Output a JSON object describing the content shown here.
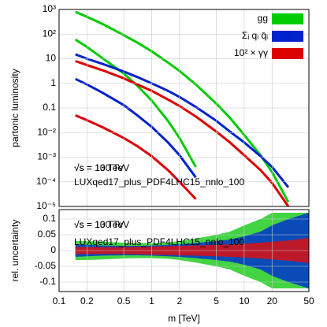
{
  "chart_data": [
    {
      "type": "line",
      "ylabel": "partonic luminosity",
      "xlog": true,
      "ylog": true,
      "grid": true,
      "legend": "upper right",
      "x": [
        0.15,
        0.2,
        0.3,
        0.5,
        0.7,
        1,
        1.5,
        2,
        3,
        5,
        7,
        10,
        15,
        20,
        30,
        50
      ],
      "xlim": [
        0.1,
        50
      ],
      "ylim": [
        1e-05,
        1000
      ],
      "yticks": [
        {
          "value": 1e-05,
          "label": "10⁻⁵"
        },
        {
          "value": 0.0001,
          "label": "10⁻⁴"
        },
        {
          "value": 0.001,
          "label": "10⁻³"
        },
        {
          "value": 0.01,
          "label": "10⁻²"
        },
        {
          "value": 0.1,
          "label": "0.1"
        },
        1,
        10,
        {
          "value": 100,
          "label": "10²"
        },
        {
          "value": 1000,
          "label": "10³"
        }
      ],
      "series": [
        {
          "name": "gg",
          "color": "#00cc00",
          "values": [
            800,
            500,
            250,
            90,
            45,
            20,
            7,
            3.2,
            0.9,
            0.15,
            0.04,
            0.008,
            0.0012,
            0.00025,
            1.5e-05,
            null
          ]
        },
        {
          "name": "Σᵢ qᵢ q̄ᵢ",
          "color": "#0022cc",
          "values": [
            15,
            10,
            6,
            3,
            1.8,
            1,
            0.5,
            0.28,
            0.11,
            0.03,
            0.011,
            0.004,
            0.0011,
            0.0004,
            6e-05,
            null
          ]
        },
        {
          "name": "10² × γγ",
          "color": "#dd0000",
          "values": [
            8,
            5.5,
            3.3,
            1.6,
            0.9,
            0.5,
            0.22,
            0.12,
            0.045,
            0.011,
            0.004,
            0.0012,
            0.0003,
            9e-05,
            1e-05,
            null
          ]
        }
      ],
      "series_low": [
        {
          "color": "#00cc00",
          "values": [
            60,
            30,
            10,
            2.5,
            0.8,
            0.2,
            0.03,
            0.006,
            0.0004,
            null,
            null,
            null,
            null,
            null,
            null,
            null
          ]
        },
        {
          "color": "#0022cc",
          "values": [
            1.5,
            0.9,
            0.4,
            0.13,
            0.05,
            0.017,
            0.004,
            0.0012,
            0.00015,
            null,
            null,
            null,
            null,
            null,
            null,
            null
          ]
        },
        {
          "color": "#dd0000",
          "values": [
            0.05,
            0.032,
            0.016,
            0.006,
            0.0028,
            0.0011,
            0.0003,
            0.0001,
            2e-05,
            null,
            null,
            null,
            null,
            null,
            null,
            null
          ]
        }
      ],
      "annotations": [
        "√s = 100 TeV",
        "√s = 13 TeV",
        "LUXqed17_plus_PDF4LHC15_nnlo_100"
      ]
    },
    {
      "type": "band",
      "ylabel": "rel. uncertainty",
      "xlabel": "m [TeV]",
      "xlog": true,
      "grid": true,
      "x": [
        0.15,
        0.2,
        0.3,
        0.5,
        0.7,
        1,
        1.5,
        2,
        3,
        5,
        7,
        10,
        15,
        20,
        30,
        50
      ],
      "xlim": [
        0.1,
        50
      ],
      "ylim": [
        -0.13,
        0.13
      ],
      "xticks": [
        0.1,
        0.2,
        0.5,
        1,
        2,
        5,
        10,
        20,
        50
      ],
      "yticks": [
        -0.1,
        -0.05,
        0,
        0.05,
        0.1
      ],
      "series": [
        {
          "color": "#22cc22",
          "upper": [
            0.03,
            0.03,
            0.028,
            0.025,
            0.024,
            0.024,
            0.026,
            0.03,
            0.038,
            0.05,
            0.06,
            0.08,
            0.1,
            0.12,
            0.12,
            0.12
          ],
          "lower": [
            -0.03,
            -0.03,
            -0.028,
            -0.025,
            -0.024,
            -0.024,
            -0.026,
            -0.03,
            -0.038,
            -0.05,
            -0.06,
            -0.08,
            -0.1,
            -0.12,
            -0.12,
            -0.12
          ]
        },
        {
          "color": "#0033cc",
          "upper": [
            0.02,
            0.018,
            0.016,
            0.015,
            0.015,
            0.016,
            0.018,
            0.02,
            0.024,
            0.03,
            0.035,
            0.045,
            0.06,
            0.08,
            0.1,
            0.12
          ],
          "lower": [
            -0.02,
            -0.018,
            -0.016,
            -0.015,
            -0.015,
            -0.016,
            -0.018,
            -0.02,
            -0.024,
            -0.03,
            -0.035,
            -0.045,
            -0.06,
            -0.08,
            -0.1,
            -0.12
          ]
        },
        {
          "color": "#dd1111",
          "upper": [
            0.012,
            0.011,
            0.011,
            0.011,
            0.012,
            0.013,
            0.014,
            0.015,
            0.016,
            0.018,
            0.02,
            0.022,
            0.025,
            0.028,
            0.032,
            0.04
          ],
          "lower": [
            -0.012,
            -0.011,
            -0.011,
            -0.011,
            -0.012,
            -0.013,
            -0.014,
            -0.015,
            -0.016,
            -0.018,
            -0.02,
            -0.022,
            -0.025,
            -0.028,
            -0.032,
            -0.04
          ]
        }
      ],
      "annotations": [
        "√s = 100 TeV",
        "√s = 13 TeV",
        "LUXqed17_plus_PDF4LHC15_nnlo_100"
      ]
    }
  ]
}
